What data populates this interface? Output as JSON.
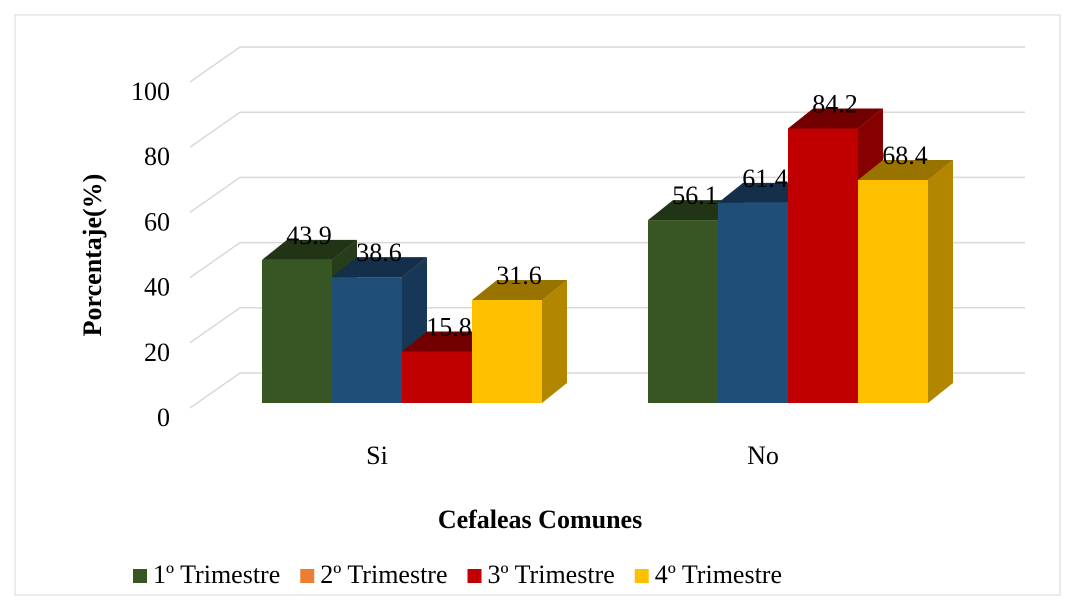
{
  "chart_data": {
    "type": "bar3d",
    "x_label": "Cefaleas Comunes",
    "y_label": "Porcentaje(%)",
    "categories": [
      "Si",
      "No"
    ],
    "series": [
      {
        "name": "1º Trimestre",
        "color": "#375623",
        "legend_color": "#375623",
        "values": [
          43.9,
          56.1
        ]
      },
      {
        "name": "2º Trimestre",
        "color": "#1f4e79",
        "legend_color": "#ed7d31",
        "values": [
          38.6,
          61.4
        ]
      },
      {
        "name": "3º Trimestre",
        "color": "#c00000",
        "legend_color": "#c00000",
        "values": [
          15.8,
          84.2
        ]
      },
      {
        "name": "4º Trimestre",
        "color": "#ffc000",
        "legend_color": "#ffc000",
        "values": [
          31.6,
          68.4
        ]
      }
    ],
    "ylim": [
      0,
      100
    ],
    "yticks": [
      0,
      20,
      40,
      60,
      80,
      100
    ],
    "grid": true,
    "legend": "bottom"
  }
}
